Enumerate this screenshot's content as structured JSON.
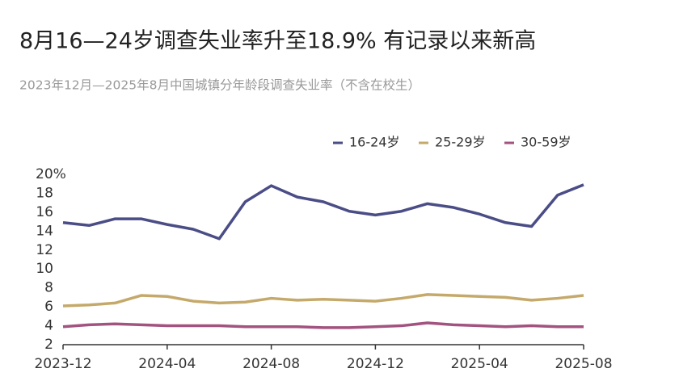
{
  "chart_data": {
    "type": "line",
    "title": "8月16—24岁调查失业率升至18.9% 有记录以来新高",
    "subtitle": "2023年12月—2025年8月中国城镇分年龄段调查失业率（不含在校生）",
    "categories": [
      "2023-12",
      null,
      null,
      null,
      "2024-04",
      null,
      null,
      null,
      "2024-08",
      null,
      null,
      null,
      "2024-12",
      null,
      null,
      null,
      "2025-04",
      null,
      null,
      null,
      "2025-08"
    ],
    "series": [
      {
        "name": "16-24岁",
        "color": "#4a4d86",
        "values": [
          14.9,
          14.6,
          15.3,
          15.3,
          14.7,
          14.2,
          13.2,
          17.1,
          18.8,
          17.6,
          17.1,
          16.1,
          15.7,
          16.1,
          16.9,
          16.5,
          15.8,
          14.9,
          14.5,
          17.8,
          18.9
        ]
      },
      {
        "name": "25-29岁",
        "color": "#c5a96b",
        "values": [
          6.1,
          6.2,
          6.4,
          7.2,
          7.1,
          6.6,
          6.4,
          6.5,
          6.9,
          6.7,
          6.8,
          6.7,
          6.6,
          6.9,
          7.3,
          7.2,
          7.1,
          7.0,
          6.7,
          6.9,
          7.2
        ]
      },
      {
        "name": "30-59岁",
        "color": "#a3537f",
        "values": [
          3.9,
          4.1,
          4.2,
          4.1,
          4.0,
          4.0,
          4.0,
          3.9,
          3.9,
          3.9,
          3.8,
          3.8,
          3.9,
          4.0,
          4.3,
          4.1,
          4.0,
          3.9,
          4.0,
          3.9,
          3.9
        ]
      }
    ],
    "ylim": [
      2,
      20
    ],
    "yticks": [
      2,
      4,
      6,
      8,
      10,
      12,
      14,
      16,
      18,
      {
        "value": 20,
        "label": "20%"
      }
    ],
    "grid": false,
    "legend": "top-right"
  }
}
